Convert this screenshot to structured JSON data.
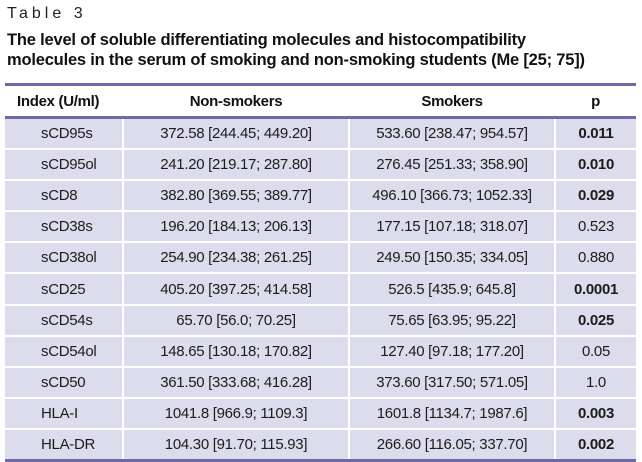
{
  "table_label": "Table 3",
  "caption_line1": "The level of soluble differentiating molecules and histocompatibility",
  "caption_line2": "molecules in the serum of smoking and non-smoking students (Me [25; 75])",
  "headers": {
    "index": "Index (U/ml)",
    "non_smokers": "Non-smokers",
    "smokers": "Smokers",
    "p": "p"
  },
  "rows": [
    {
      "index": "sCD95s",
      "non_smokers": "372.58 [244.45; 449.20]",
      "smokers": "533.60 [238.47; 954.57]",
      "p": "0.011",
      "p_bold": true
    },
    {
      "index": "sCD95ol",
      "non_smokers": "241.20 [219.17; 287.80]",
      "smokers": "276.45 [251.33; 358.90]",
      "p": "0.010",
      "p_bold": true
    },
    {
      "index": "sCD8",
      "non_smokers": "382.80 [369.55; 389.77]",
      "smokers": "496.10 [366.73; 1052.33]",
      "p": "0.029",
      "p_bold": true
    },
    {
      "index": "sCD38s",
      "non_smokers": "196.20 [184.13; 206.13]",
      "smokers": "177.15 [107.18; 318.07]",
      "p": "0.523",
      "p_bold": false
    },
    {
      "index": "sCD38ol",
      "non_smokers": "254.90 [234.38; 261.25]",
      "smokers": "249.50 [150.35; 334.05]",
      "p": "0.880",
      "p_bold": false
    },
    {
      "index": "sCD25",
      "non_smokers": "405.20 [397.25; 414.58]",
      "smokers": "526.5 [435.9; 645.8]",
      "p": "0.0001",
      "p_bold": true
    },
    {
      "index": "sCD54s",
      "non_smokers": "65.70 [56.0; 70.25]",
      "smokers": "75.65 [63.95; 95.22]",
      "p": "0.025",
      "p_bold": true
    },
    {
      "index": "sCD54ol",
      "non_smokers": "148.65 [130.18; 170.82]",
      "smokers": "127.40 [97.18; 177.20]",
      "p": "0.05",
      "p_bold": false
    },
    {
      "index": "sCD50",
      "non_smokers": "361.50 [333.68; 416.28]",
      "smokers": "373.60 [317.50; 571.05]",
      "p": "1.0",
      "p_bold": false
    },
    {
      "index": "HLA-I",
      "non_smokers": "1041.8 [966.9; 1109.3]",
      "smokers": "1601.8 [1134.7; 1987.6]",
      "p": "0.003",
      "p_bold": true
    },
    {
      "index": "HLA-DR",
      "non_smokers": "104.30 [91.70; 115.93]",
      "smokers": "266.60 [116.05; 337.70]",
      "p": "0.002",
      "p_bold": true
    }
  ],
  "colors": {
    "rule": "#6e6aa8",
    "row_fill": "#dcdcec"
  }
}
